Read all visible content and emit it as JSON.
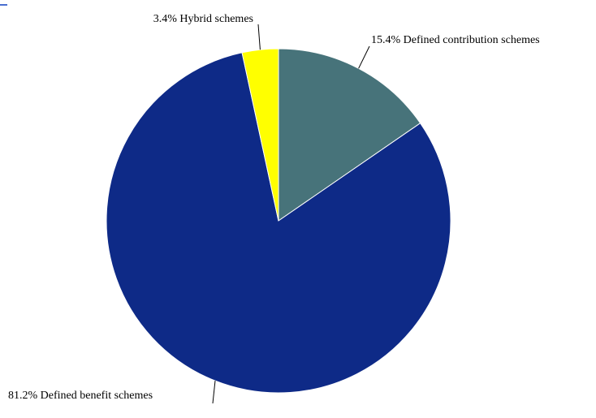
{
  "chart_data": {
    "type": "pie",
    "title": "",
    "start_angle_deg": 0,
    "direction": "clockwise",
    "legend": "none",
    "slices": [
      {
        "name": "Defined contribution schemes",
        "value": 15.4,
        "label": "15.4% Defined contribution schemes",
        "color": "#47737a"
      },
      {
        "name": "Defined benefit schemes",
        "value": 81.2,
        "label": "81.2% Defined benefit schemes",
        "color": "#0e2a87"
      },
      {
        "name": "Hybrid schemes",
        "value": 3.4,
        "label": "3.4% Hybrid schemes",
        "color": "#ffff00"
      }
    ]
  }
}
